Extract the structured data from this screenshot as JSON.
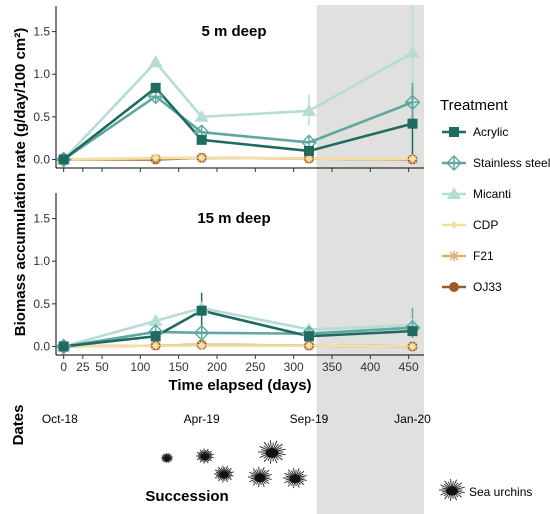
{
  "chart_data": {
    "type": "line",
    "ylabel": "Biomass accumulation rate (g/day/100 cm²)",
    "xlabel": "Time elapsed (days)",
    "x_ticks": [
      0,
      25,
      50,
      100,
      150,
      200,
      250,
      300,
      350,
      400,
      450
    ],
    "y_ticks": [
      "0.0",
      "0.5",
      "1.0",
      "1.5"
    ],
    "xlim": [
      -10,
      470
    ],
    "ylim": [
      -0.1,
      1.8
    ],
    "shaded_region": [
      330,
      470
    ],
    "legend_title": "Treatment",
    "legend_position": "right",
    "series_meta": [
      {
        "name": "Acrylic",
        "color": "#1f6b5f",
        "marker": "square"
      },
      {
        "name": "Stainless steel",
        "color": "#5fa8a0",
        "marker": "diamond"
      },
      {
        "name": "Micanti",
        "color": "#b5dcd5",
        "marker": "triangle"
      },
      {
        "name": "CDP",
        "color": "#f3e0a8",
        "marker": "diamond-small"
      },
      {
        "name": "F21",
        "color": "#e0b070",
        "marker": "star"
      },
      {
        "name": "OJ33",
        "color": "#9a5a2e",
        "marker": "circle"
      }
    ],
    "panels": [
      {
        "title": "5 m deep",
        "x": [
          0,
          120,
          180,
          320,
          455
        ],
        "series": [
          {
            "name": "Acrylic",
            "values": [
              0.0,
              0.84,
              0.23,
              0.1,
              0.42
            ]
          },
          {
            "name": "Stainless steel",
            "values": [
              0.0,
              0.74,
              0.32,
              0.2,
              0.67
            ]
          },
          {
            "name": "Micanti",
            "values": [
              0.0,
              1.14,
              0.5,
              0.57,
              1.25
            ]
          },
          {
            "name": "CDP",
            "values": [
              0.0,
              0.02,
              0.02,
              0.01,
              0.01
            ]
          },
          {
            "name": "F21",
            "values": [
              0.0,
              0.01,
              0.02,
              0.01,
              0.0
            ]
          },
          {
            "name": "OJ33",
            "values": [
              0.0,
              0.0,
              0.02,
              0.01,
              0.0
            ]
          }
        ],
        "errors": [
          {
            "series": "Micanti",
            "x": 320,
            "low": 0.4,
            "high": 0.76
          },
          {
            "series": "Micanti",
            "x": 455,
            "low": 0.6,
            "high": 1.8
          },
          {
            "series": "Acrylic",
            "x": 455,
            "low": 0.0,
            "high": 0.85
          },
          {
            "series": "Stainless steel",
            "x": 455,
            "low": 0.45,
            "high": 0.9
          }
        ]
      },
      {
        "title": "15 m deep",
        "x": [
          0,
          120,
          180,
          320,
          455
        ],
        "series": [
          {
            "name": "Acrylic",
            "values": [
              0.0,
              0.12,
              0.42,
              0.12,
              0.18
            ]
          },
          {
            "name": "Stainless steel",
            "values": [
              0.0,
              0.17,
              0.16,
              0.15,
              0.22
            ]
          },
          {
            "name": "Micanti",
            "values": [
              0.0,
              0.3,
              0.45,
              0.2,
              0.25
            ]
          },
          {
            "name": "CDP",
            "values": [
              0.0,
              0.01,
              0.01,
              0.01,
              0.0
            ]
          },
          {
            "name": "F21",
            "values": [
              0.0,
              0.01,
              0.02,
              0.01,
              0.0
            ]
          },
          {
            "name": "OJ33",
            "values": [
              0.0,
              0.01,
              0.02,
              0.01,
              0.0
            ]
          }
        ],
        "errors": [
          {
            "series": "Acrylic",
            "x": 180,
            "low": 0.2,
            "high": 0.63
          },
          {
            "series": "Stainless steel",
            "x": 455,
            "low": 0.1,
            "high": 0.45
          }
        ]
      }
    ]
  },
  "dates": {
    "label": "Dates",
    "items": [
      {
        "label": "Oct-18",
        "day": -5
      },
      {
        "label": "Apr-19",
        "day": 180
      },
      {
        "label": "Sep-19",
        "day": 320
      },
      {
        "label": "Jan-20",
        "day": 455
      }
    ]
  },
  "succession": {
    "label": "Succession",
    "legend_label": "Sea urchins"
  }
}
